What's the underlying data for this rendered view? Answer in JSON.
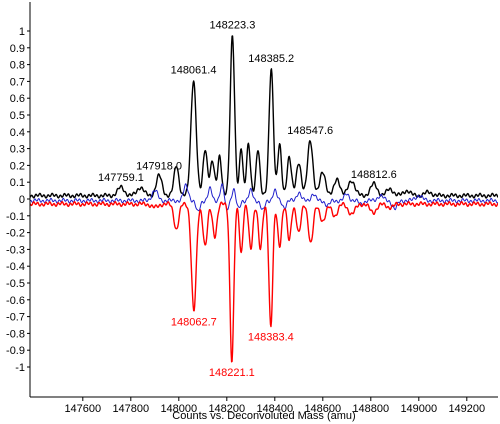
{
  "chart_data": {
    "type": "line",
    "title": "",
    "xlabel": "Counts vs. Deconvoluted Mass (amu)",
    "ylabel": "",
    "xlim": [
      147380,
      149330
    ],
    "ylim": [
      -1.04,
      1.08
    ],
    "grid": false,
    "x_ticks": [
      147600,
      147800,
      148000,
      148200,
      148400,
      148600,
      148800,
      149000,
      149200
    ],
    "x_tick_labels": [
      "147600",
      "147800",
      "148000",
      "148200",
      "148400",
      "148600",
      "148800",
      "149000",
      "149200"
    ],
    "y_ticks": [
      1,
      0.9,
      0.8,
      0.7,
      0.6,
      0.5,
      0.4,
      0.3,
      0.2,
      0.1,
      0,
      -0.1,
      -0.2,
      -0.3,
      -0.4,
      -0.5,
      -0.6,
      -0.7,
      -0.8,
      -0.9,
      -1
    ],
    "y_tick_labels": [
      "1",
      "0.9",
      "0.8",
      "0.7",
      "0.6",
      "0.5",
      "0.4",
      "0.3",
      "0.2",
      "0.1",
      "0",
      "-0.1",
      "-0.2",
      "-0.3",
      "-0.4",
      "-0.5",
      "-0.6",
      "-0.7",
      "-0.8",
      "-0.9",
      "-1"
    ],
    "series": [
      {
        "color": "#000000",
        "baseline": 0.02,
        "peaks": [
          [
            147759.1,
            0.07,
            14
          ],
          [
            147840,
            0.07,
            14
          ],
          [
            147918.0,
            0.14,
            12
          ],
          [
            147990,
            0.2,
            10
          ],
          [
            148061.4,
            0.71,
            11
          ],
          [
            148110,
            0.3,
            9
          ],
          [
            148140,
            0.22,
            9
          ],
          [
            148170,
            0.26,
            8
          ],
          [
            148223.3,
            0.98,
            9
          ],
          [
            148260,
            0.3,
            7
          ],
          [
            148290,
            0.33,
            8
          ],
          [
            148330,
            0.3,
            8
          ],
          [
            148385.2,
            0.78,
            9
          ],
          [
            148420,
            0.32,
            8
          ],
          [
            148460,
            0.25,
            9
          ],
          [
            148500,
            0.22,
            10
          ],
          [
            148547.6,
            0.35,
            11
          ],
          [
            148600,
            0.16,
            12
          ],
          [
            148660,
            0.12,
            12
          ],
          [
            148720,
            0.11,
            14
          ],
          [
            148812.6,
            0.09,
            14
          ],
          [
            148880,
            0.06,
            14
          ],
          [
            148950,
            0.05,
            14
          ],
          [
            149040,
            0.04,
            16
          ]
        ]
      },
      {
        "color": "#2020cc",
        "baseline": -0.01,
        "peaks": [
          [
            147900,
            0.06,
            12
          ],
          [
            148030,
            0.09,
            10
          ],
          [
            148080,
            -0.08,
            8
          ],
          [
            148130,
            0.07,
            8
          ],
          [
            148180,
            0.09,
            8
          ],
          [
            148200,
            -0.07,
            6
          ],
          [
            148228,
            0.07,
            6
          ],
          [
            148250,
            -0.06,
            6
          ],
          [
            148300,
            0.06,
            8
          ],
          [
            148350,
            -0.07,
            8
          ],
          [
            148400,
            0.06,
            8
          ],
          [
            148440,
            -0.05,
            8
          ],
          [
            148500,
            0.05,
            9
          ],
          [
            148560,
            0.04,
            9
          ],
          [
            148620,
            -0.04,
            9
          ],
          [
            148700,
            0.04,
            10
          ],
          [
            148760,
            -0.03,
            10
          ],
          [
            148840,
            0.03,
            12
          ],
          [
            148900,
            -0.06,
            10
          ],
          [
            149000,
            0.03,
            14
          ]
        ]
      },
      {
        "color": "#ff0000",
        "baseline": -0.03,
        "peaks": [
          [
            147900,
            -0.05,
            14
          ],
          [
            147990,
            -0.18,
            10
          ],
          [
            148062.7,
            -0.67,
            10
          ],
          [
            148110,
            -0.28,
            9
          ],
          [
            148150,
            -0.22,
            9
          ],
          [
            148221.1,
            -0.97,
            8
          ],
          [
            148260,
            -0.32,
            7
          ],
          [
            148300,
            -0.3,
            8
          ],
          [
            148340,
            -0.3,
            8
          ],
          [
            148383.4,
            -0.76,
            8
          ],
          [
            148420,
            -0.28,
            8
          ],
          [
            148460,
            -0.25,
            8
          ],
          [
            148500,
            -0.2,
            9
          ],
          [
            148550,
            -0.26,
            10
          ],
          [
            148600,
            -0.13,
            12
          ],
          [
            148650,
            -0.1,
            12
          ],
          [
            148720,
            -0.09,
            14
          ],
          [
            148810,
            -0.08,
            14
          ],
          [
            148880,
            -0.05,
            14
          ],
          [
            148960,
            -0.03,
            16
          ]
        ]
      }
    ],
    "annotations": [
      {
        "label": "147759.1",
        "x": 147759.1,
        "y": 0.07,
        "color": "#000000",
        "pos": "above"
      },
      {
        "label": "147918.0",
        "x": 147918.0,
        "y": 0.14,
        "color": "#000000",
        "pos": "above"
      },
      {
        "label": "148061.4",
        "x": 148061.4,
        "y": 0.71,
        "color": "#000000",
        "pos": "above"
      },
      {
        "label": "148223.3",
        "x": 148223.3,
        "y": 0.98,
        "color": "#000000",
        "pos": "above"
      },
      {
        "label": "148385.2",
        "x": 148385.2,
        "y": 0.78,
        "color": "#000000",
        "pos": "above"
      },
      {
        "label": "148547.6",
        "x": 148547.6,
        "y": 0.35,
        "color": "#000000",
        "pos": "above"
      },
      {
        "label": "148812.6",
        "x": 148812.6,
        "y": 0.09,
        "color": "#000000",
        "pos": "above"
      },
      {
        "label": "148062.7",
        "x": 148062.7,
        "y": -0.67,
        "color": "#ff0000",
        "pos": "below"
      },
      {
        "label": "148221.1",
        "x": 148221.1,
        "y": -0.97,
        "color": "#ff0000",
        "pos": "below"
      },
      {
        "label": "148383.4",
        "x": 148383.4,
        "y": -0.76,
        "color": "#ff0000",
        "pos": "below"
      }
    ]
  }
}
